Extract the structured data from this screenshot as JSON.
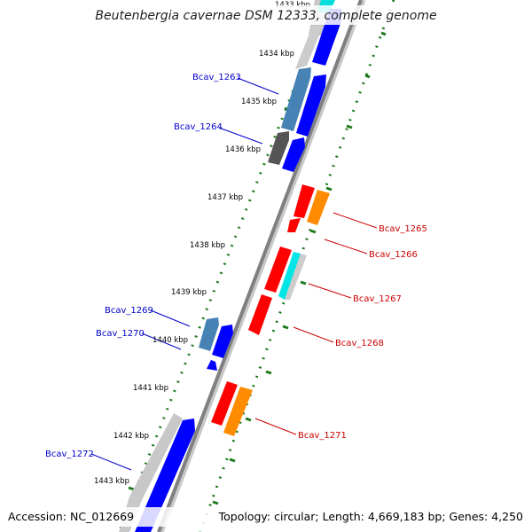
{
  "title": "Beutenbergia cavernae DSM 12333, complete genome",
  "footer": {
    "accession": "Accession: NC_012669",
    "summary": "Topology: circular; Length: 4,669,183 bp; Genes: 4,250"
  },
  "colors": {
    "backbone": "#808080",
    "gc_dots": "#1f7a1f",
    "label_blue": "#0000cc",
    "label_red": "#cc0000",
    "gene_blue": "#0000ff",
    "gene_steelblue": "#4682b4",
    "gene_gray": "#555555",
    "gene_lightgray": "#c8c8c8",
    "gene_red": "#ff0000",
    "gene_orange": "#ff8c00",
    "gene_cyan": "#00e5e5"
  },
  "kbp_ticks": [
    {
      "label": "1433 kbp"
    },
    {
      "label": "1434 kbp"
    },
    {
      "label": "1435 kbp"
    },
    {
      "label": "1436 kbp"
    },
    {
      "label": "1437 kbp"
    },
    {
      "label": "1438 kbp"
    },
    {
      "label": "1439 kbp"
    },
    {
      "label": "1440 kbp"
    },
    {
      "label": "1441 kbp"
    },
    {
      "label": "1442 kbp"
    },
    {
      "label": "1443 kbp"
    }
  ],
  "gene_labels": [
    {
      "text": "Bcav_1263",
      "strand": "forward"
    },
    {
      "text": "Bcav_1264",
      "strand": "forward"
    },
    {
      "text": "Bcav_1265",
      "strand": "reverse"
    },
    {
      "text": "Bcav_1266",
      "strand": "reverse"
    },
    {
      "text": "Bcav_1267",
      "strand": "reverse"
    },
    {
      "text": "Bcav_1268",
      "strand": "reverse"
    },
    {
      "text": "Bcav_1269",
      "strand": "forward"
    },
    {
      "text": "Bcav_1270",
      "strand": "forward"
    },
    {
      "text": "Bcav_1271",
      "strand": "reverse"
    },
    {
      "text": "Bcav_1272",
      "strand": "forward"
    }
  ]
}
